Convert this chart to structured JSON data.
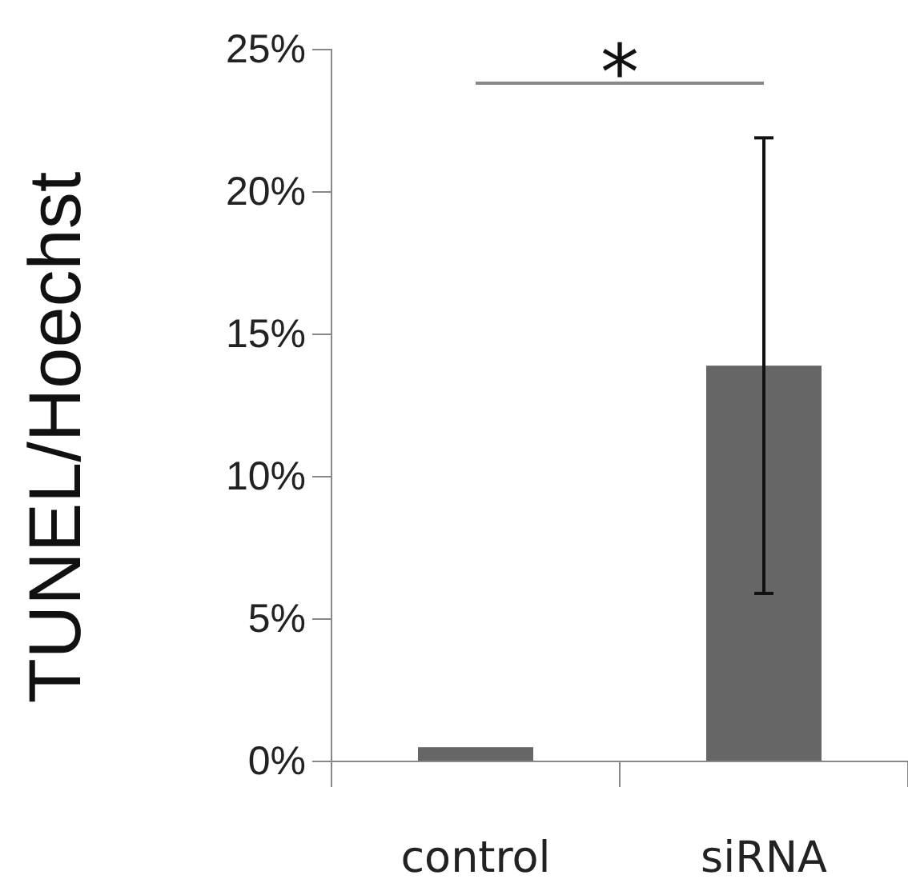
{
  "chart_data": {
    "type": "bar",
    "ylabel": "TUNEL/Hoechst",
    "categories": [
      "control",
      "siRNA"
    ],
    "values": [
      0.5,
      13.9
    ],
    "errors": [
      null,
      8
    ],
    "color": "#666666",
    "ylim": [
      0,
      25
    ],
    "yticks": [
      {
        "value": 0,
        "label": "0%"
      },
      {
        "value": 5,
        "label": "5%"
      },
      {
        "value": 10,
        "label": "10%"
      },
      {
        "value": 15,
        "label": "15%"
      },
      {
        "value": 20,
        "label": "20%"
      },
      {
        "value": 25,
        "label": "25%"
      }
    ],
    "annotations": [
      "*"
    ],
    "grid": false
  }
}
